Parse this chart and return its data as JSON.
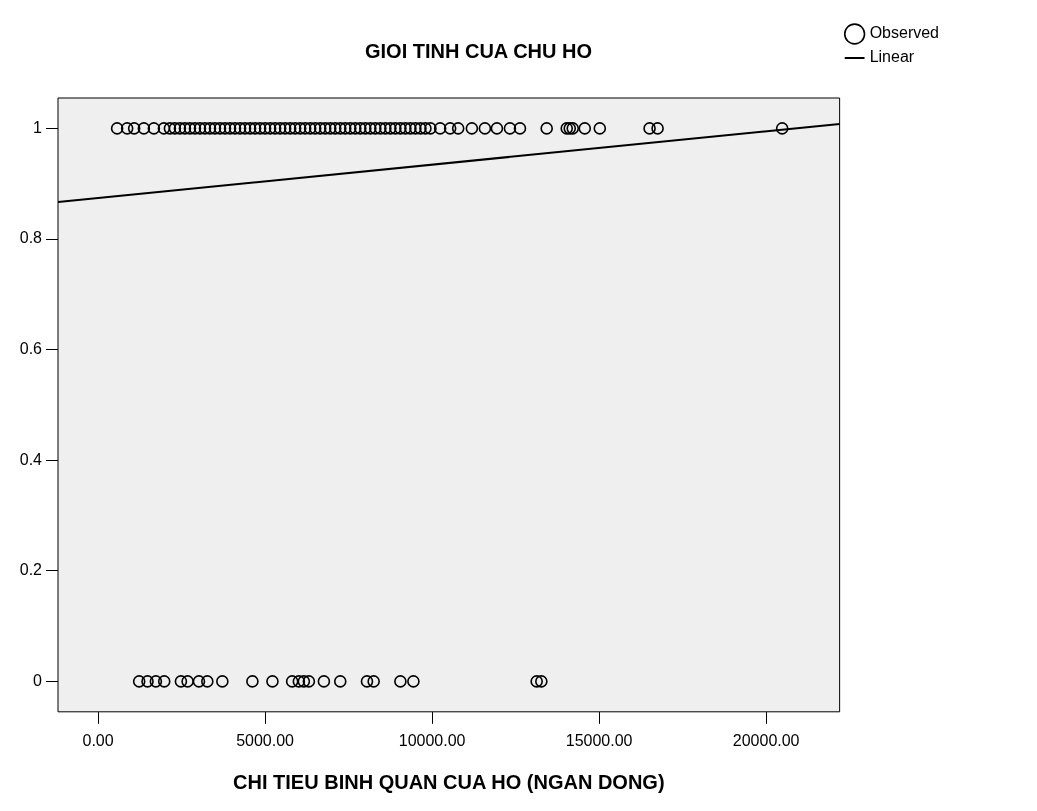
{
  "chart_data": {
    "type": "scatter",
    "title": "GIOI TINH CUA CHU HO",
    "xlabel": "CHI TIEU BINH QUAN CUA HO (NGAN DONG)",
    "xlim": [
      -1200,
      22200
    ],
    "ylim": [
      -0.055,
      1.055
    ],
    "xticks": [
      {
        "value": 0,
        "label": "0.00"
      },
      {
        "value": 5000,
        "label": "5000.00"
      },
      {
        "value": 10000,
        "label": "10000.00"
      },
      {
        "value": 15000,
        "label": "15000.00"
      },
      {
        "value": 20000,
        "label": "20000.00"
      }
    ],
    "yticks": [
      0,
      0.2,
      0.4,
      0.6,
      0.8,
      1
    ],
    "grid": false,
    "legend": "top right",
    "marker": "circle",
    "series": [
      {
        "name": "Observed",
        "type": "scatter",
        "color": "#000000",
        "x": [
          570,
          870,
          1080,
          1370,
          1670,
          1970,
          2150,
          2300,
          2450,
          2600,
          2750,
          2900,
          3050,
          3200,
          3350,
          3500,
          3650,
          3800,
          3950,
          4100,
          4250,
          4400,
          4550,
          4700,
          4850,
          5000,
          5150,
          5300,
          5450,
          5600,
          5750,
          5900,
          6050,
          6200,
          6350,
          6500,
          6650,
          6800,
          6950,
          7100,
          7250,
          7400,
          7550,
          7700,
          7850,
          8000,
          8150,
          8300,
          8450,
          8600,
          8750,
          8900,
          9050,
          9200,
          9350,
          9500,
          9650,
          9800,
          9950,
          10240,
          10540,
          10780,
          11190,
          11580,
          11940,
          12330,
          12630,
          13430,
          14030,
          14120,
          14210,
          14570,
          15020,
          16510,
          16750,
          20480,
          1230,
          1480,
          1730,
          1980,
          2480,
          2680,
          3020,
          3270,
          3720,
          4620,
          5220,
          5810,
          6010,
          6160,
          6310,
          6760,
          7250,
          8050,
          8250,
          9050,
          9440,
          13130,
          13270
        ],
        "values": [
          1,
          1,
          1,
          1,
          1,
          1,
          1,
          1,
          1,
          1,
          1,
          1,
          1,
          1,
          1,
          1,
          1,
          1,
          1,
          1,
          1,
          1,
          1,
          1,
          1,
          1,
          1,
          1,
          1,
          1,
          1,
          1,
          1,
          1,
          1,
          1,
          1,
          1,
          1,
          1,
          1,
          1,
          1,
          1,
          1,
          1,
          1,
          1,
          1,
          1,
          1,
          1,
          1,
          1,
          1,
          1,
          1,
          1,
          1,
          1,
          1,
          1,
          1,
          1,
          1,
          1,
          1,
          1,
          1,
          1,
          1,
          1,
          1,
          1,
          1,
          1,
          0,
          0,
          0,
          0,
          0,
          0,
          0,
          0,
          0,
          0,
          0,
          0,
          0,
          0,
          0,
          0,
          0,
          0,
          0,
          0,
          0,
          0,
          0
        ]
      },
      {
        "name": "Linear",
        "type": "line",
        "color": "#000000",
        "marker": "none",
        "x": [
          -1200,
          22200
        ],
        "values": [
          0.867,
          1.008
        ]
      }
    ]
  }
}
